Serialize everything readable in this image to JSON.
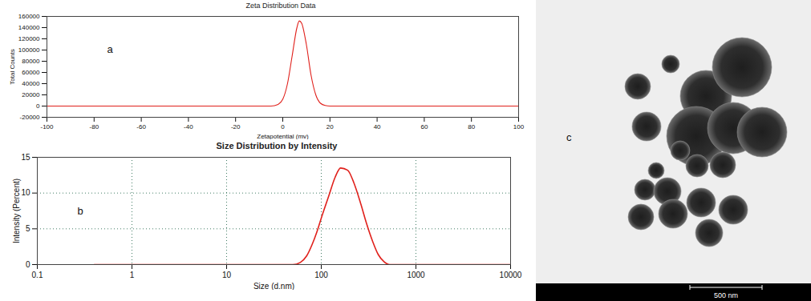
{
  "chart_data": [
    {
      "type": "line",
      "title": "Zeta Distribution Data",
      "annotation": "a",
      "x_label": "Zetapotential (mv)",
      "y_label": "Total Counts",
      "x": [
        -100,
        -5,
        -2,
        0,
        2,
        4,
        6,
        7,
        8,
        10,
        12,
        14,
        16,
        18,
        20,
        100
      ],
      "values": [
        0,
        0,
        3000,
        12000,
        40000,
        90000,
        140000,
        152000,
        148000,
        110000,
        55000,
        20000,
        5000,
        1000,
        0,
        0
      ],
      "color": "#e0201b",
      "xlim": [
        -100,
        100
      ],
      "xticks": [
        -100,
        -80,
        -60,
        -40,
        -20,
        0,
        20,
        40,
        60,
        80,
        100
      ],
      "ylim": [
        -20000,
        160000
      ],
      "yticks": [
        -20000,
        0,
        20000,
        40000,
        60000,
        80000,
        100000,
        120000,
        140000,
        160000
      ],
      "grid": false
    },
    {
      "type": "line",
      "title": "Size Distribution by Intensity",
      "annotation": "b",
      "x_label": "Size (d.nm)",
      "y_label": "Intensity (Percent)",
      "x": [
        0.4,
        1,
        10,
        50,
        60,
        70,
        80,
        90,
        100,
        120,
        140,
        160,
        190,
        220,
        260,
        300,
        350,
        400,
        460,
        530,
        1000,
        10000
      ],
      "values": [
        0,
        0,
        0,
        0,
        0.3,
        1.2,
        2.8,
        4.6,
        6.5,
        9.6,
        12.2,
        13.5,
        13.2,
        11.5,
        8.6,
        5.8,
        3.2,
        1.4,
        0.4,
        0,
        0,
        0
      ],
      "color": "#e0201b",
      "log": "x",
      "xlim": [
        0.1,
        10000
      ],
      "xticks": [
        0.1,
        1,
        10,
        100,
        1000,
        10000
      ],
      "ylim": [
        0,
        15
      ],
      "yticks": [
        0,
        5,
        10,
        15
      ],
      "grid": true
    }
  ],
  "image": {
    "label": "c",
    "scale_bar": "500 nm"
  }
}
